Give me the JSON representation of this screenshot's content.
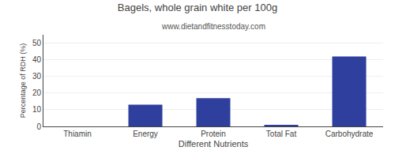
{
  "chart_data": {
    "type": "bar",
    "title": "Bagels, whole grain white per 100g",
    "subtitle": "www.dietandfitnesstoday.com",
    "xlabel": "Different Nutrients",
    "ylabel": "Percentage of RDH (%)",
    "categories": [
      "Thiamin",
      "Energy",
      "Protein",
      "Total Fat",
      "Carbohydrate"
    ],
    "values": [
      0,
      13,
      17,
      0.5,
      42
    ],
    "color": "#2e3f9e",
    "ylim": [
      0,
      55
    ],
    "yticks": [
      0,
      10,
      20,
      30,
      40,
      50
    ],
    "grid": true
  }
}
